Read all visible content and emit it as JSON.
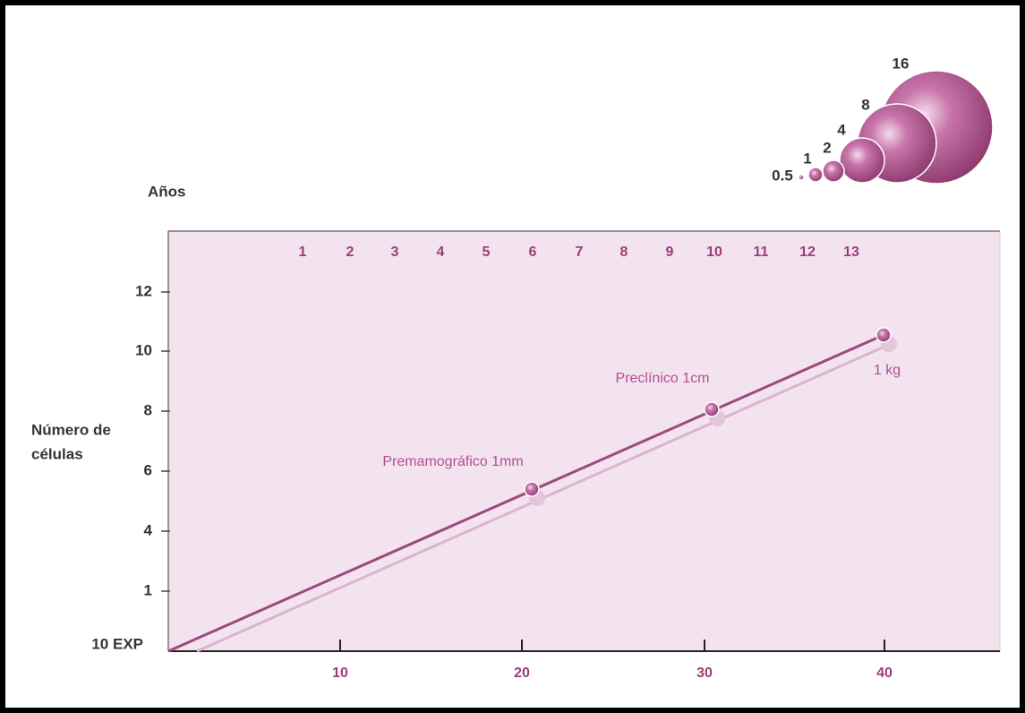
{
  "years": {
    "title": "Años",
    "labels": [
      "1",
      "2",
      "3",
      "4",
      "5",
      "6",
      "7",
      "8",
      "9",
      "10",
      "11",
      "12",
      "13"
    ]
  },
  "sizes": {
    "labels": [
      "0.5",
      "1",
      "2",
      "4",
      "8",
      "16"
    ]
  },
  "y_axis": {
    "title_lines": [
      "Número de",
      "células"
    ],
    "tick_labels": [
      "12",
      "10",
      "8",
      "6",
      "4",
      "1",
      "10 EXP"
    ]
  },
  "x_axis": {
    "tick_labels": [
      "10",
      "20",
      "30",
      "40"
    ]
  },
  "annotations": [
    "Premamográfico 1mm",
    "Preclínico 1cm",
    "1 kg"
  ]
}
